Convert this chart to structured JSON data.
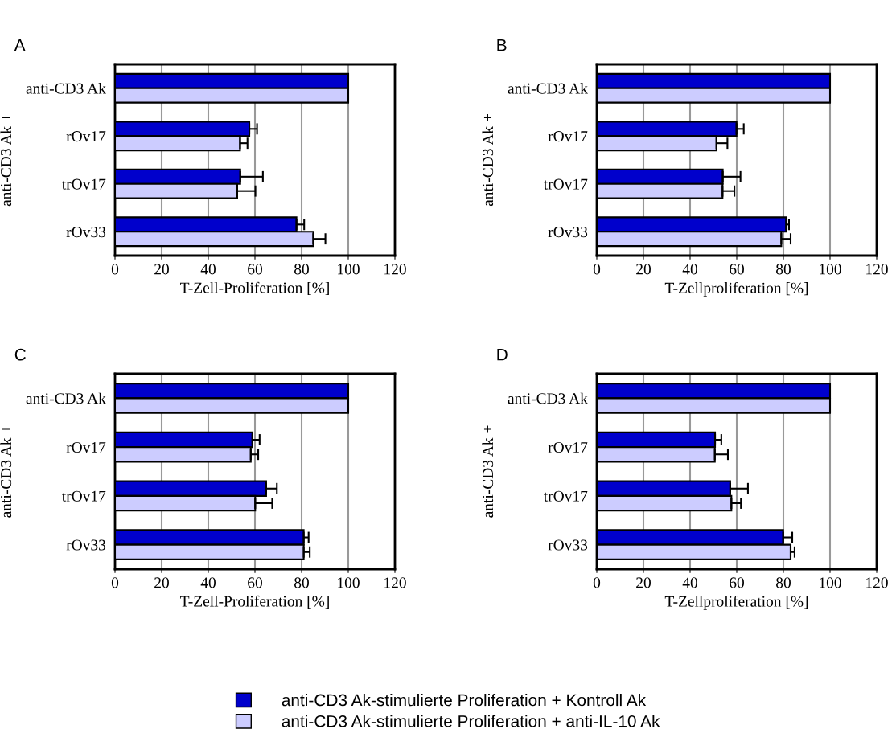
{
  "chart_data": [
    {
      "type": "bar",
      "orientation": "horizontal",
      "title": "A",
      "xlabel": "T-Zell-Proliferation [%]",
      "ylabel": "anti-CD3 Ak +",
      "categories": [
        "anti-CD3 Ak",
        "rOv17",
        "trOv17",
        "rOv33"
      ],
      "xlim": [
        0,
        120
      ],
      "xticks": [
        0,
        20,
        40,
        60,
        80,
        100,
        120
      ],
      "grid": "x",
      "legend": "bottom",
      "series": [
        {
          "name": "anti-CD3 Ak-stimulierte Proliferation + Kontroll Ak",
          "color": "#0000cc",
          "values": [
            100,
            57.6,
            53.7,
            77.8
          ],
          "errors": [
            null,
            [
              57.6,
              60.9
            ],
            [
              53.7,
              63.4
            ],
            [
              77.8,
              81.1
            ]
          ]
        },
        {
          "name": "anti-CD3 Ak-stimulierte Proliferation + anti-IL-10 Ak",
          "color": "#ccccff",
          "values": [
            100,
            53.6,
            52.4,
            85
          ],
          "errors": [
            null,
            [
              53.6,
              56.8
            ],
            [
              52.4,
              60.2
            ],
            [
              85,
              90.2
            ]
          ]
        }
      ]
    },
    {
      "type": "bar",
      "orientation": "horizontal",
      "title": "B",
      "xlabel": "T-Zellproliferation [%]",
      "ylabel": "anti-CD3 Ak +",
      "categories": [
        "anti-CD3 Ak",
        "rOv17",
        "trOv17",
        "rOv33"
      ],
      "xlim": [
        0,
        120
      ],
      "xticks": [
        0,
        20,
        40,
        60,
        80,
        100,
        120
      ],
      "grid": "x",
      "series": [
        {
          "color": "#0000cc",
          "values": [
            100,
            59.9,
            54.0,
            81.2
          ],
          "errors": [
            null,
            [
              59.9,
              63.0
            ],
            [
              54.0,
              61.6
            ],
            [
              81.2,
              82.4
            ]
          ]
        },
        {
          "color": "#ccccff",
          "values": [
            100,
            51.3,
            53.9,
            79.1
          ],
          "errors": [
            null,
            [
              51.3,
              56.0
            ],
            [
              53.9,
              59.0
            ],
            [
              79.1,
              83.1
            ]
          ]
        }
      ]
    },
    {
      "type": "bar",
      "orientation": "horizontal",
      "title": "C",
      "xlabel": "T-Zell-Proliferation [%]",
      "ylabel": "anti-CD3 Ak +",
      "categories": [
        "anti-CD3 Ak",
        "rOv17",
        "trOv17",
        "rOv33"
      ],
      "xlim": [
        0,
        120
      ],
      "xticks": [
        0,
        20,
        40,
        60,
        80,
        100,
        120
      ],
      "grid": "x",
      "series": [
        {
          "color": "#0000cc",
          "values": [
            100,
            58.9,
            64.8,
            80.9
          ],
          "errors": [
            null,
            [
              58.9,
              62.0
            ],
            [
              64.8,
              69.4
            ],
            [
              80.9,
              83.0
            ]
          ]
        },
        {
          "color": "#ccccff",
          "values": [
            100,
            58.2,
            60.1,
            80.9
          ],
          "errors": [
            null,
            [
              58.2,
              61.4
            ],
            [
              60.1,
              67.4
            ],
            [
              80.9,
              83.5
            ]
          ]
        }
      ]
    },
    {
      "type": "bar",
      "orientation": "horizontal",
      "title": "D",
      "xlabel": "T-Zellproliferation [%]",
      "ylabel": "anti-CD3 Ak +",
      "categories": [
        "anti-CD3 Ak",
        "rOv17",
        "trOv17",
        "rOv33"
      ],
      "xlim": [
        0,
        120
      ],
      "xticks": [
        0,
        20,
        40,
        60,
        80,
        100,
        120
      ],
      "grid": "x",
      "series": [
        {
          "color": "#0000cc",
          "values": [
            100,
            50.7,
            57.2,
            79.9
          ],
          "errors": [
            null,
            [
              50.7,
              53.4
            ],
            [
              57.2,
              64.8
            ],
            [
              79.9,
              83.8
            ]
          ]
        },
        {
          "color": "#ccccff",
          "values": [
            100,
            50.6,
            57.7,
            83.1
          ],
          "errors": [
            null,
            [
              50.6,
              56.2
            ],
            [
              57.7,
              61.8
            ],
            [
              83.1,
              84.8
            ]
          ]
        }
      ]
    }
  ]
}
